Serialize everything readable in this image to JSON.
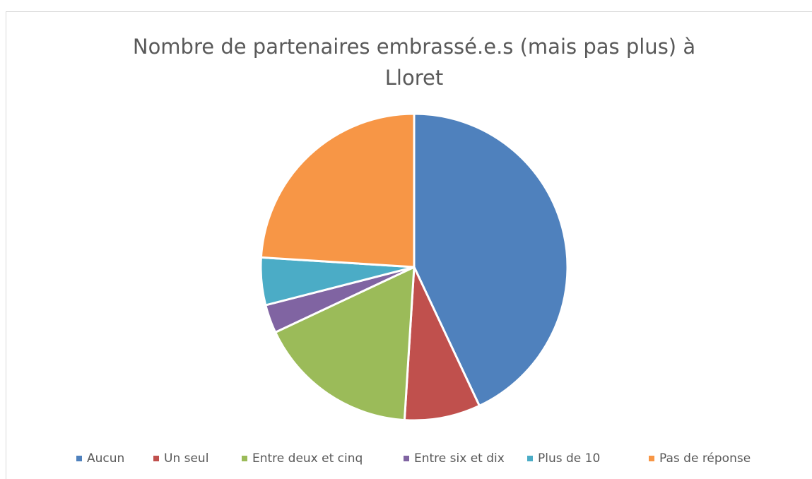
{
  "chart_data": {
    "type": "pie",
    "title": "Nombre de partenaires embrassé.e.s (mais pas plus) à Lloret",
    "categories": [
      "Aucun",
      "Un seul",
      "Entre deux et cinq",
      "Entre six et dix",
      "Plus de 10",
      "Pas de réponse"
    ],
    "values": [
      43,
      8,
      17,
      3,
      5,
      24
    ],
    "colors": [
      "#4f81bd",
      "#c0504d",
      "#9bbb59",
      "#8064a2",
      "#4bacc6",
      "#f79646"
    ],
    "legend": "bottom"
  }
}
